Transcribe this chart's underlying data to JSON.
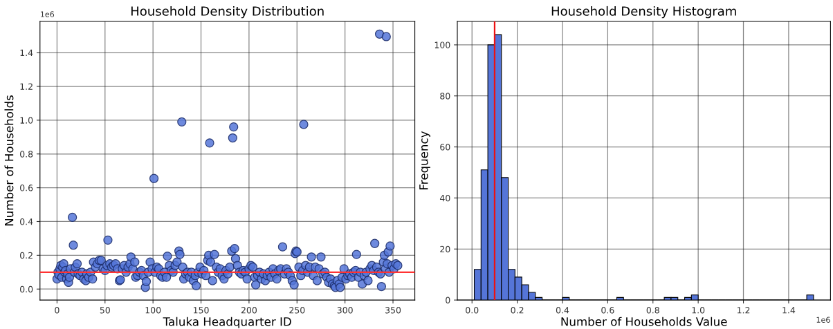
{
  "chart_data": [
    {
      "type": "scatter",
      "title": "Household Density Distribution",
      "xlabel": "Taluka Headquarter ID",
      "ylabel": "Number of Households",
      "annotations": [
        "1e6"
      ],
      "xlim": [
        -17.75,
        372.75
      ],
      "xticks": [
        0,
        50,
        100,
        150,
        200,
        250,
        300,
        350
      ],
      "ylim": [
        -0.065,
        1.585
      ],
      "yticks": [
        {
          "value": 0.0,
          "label": "0.0"
        },
        {
          "value": 0.2,
          "label": "0.2"
        },
        {
          "value": 0.4,
          "label": "0.4"
        },
        {
          "value": 0.6,
          "label": "0.6"
        },
        {
          "value": 0.8,
          "label": "0.8"
        },
        {
          "value": 1.0,
          "label": "1.0"
        },
        {
          "value": 1.2,
          "label": "1.2"
        },
        {
          "value": 1.4,
          "label": "1.4"
        }
      ],
      "grid": true,
      "marker": "circle",
      "ref_lines": [
        {
          "axis": "y",
          "value": 0.1,
          "color": "#ff3333"
        }
      ],
      "series": [
        {
          "color": "#5575d8",
          "x": [
            0,
            1,
            2,
            3,
            4,
            5,
            6,
            7,
            8,
            9,
            10,
            11,
            12,
            13,
            14,
            16,
            17,
            18,
            19,
            21,
            22,
            24,
            26,
            28,
            30,
            31,
            33,
            35,
            37,
            38,
            40,
            42,
            44,
            46,
            48,
            50,
            52,
            53,
            55,
            57,
            59,
            61,
            63,
            65,
            66,
            68,
            70,
            72,
            74,
            76,
            77,
            79,
            81,
            82,
            84,
            86,
            88,
            90,
            92,
            93,
            95,
            97,
            99,
            101,
            102,
            104,
            106,
            108,
            110,
            112,
            114,
            115,
            117,
            119,
            121,
            123,
            125,
            127,
            128,
            130,
            131,
            132,
            134,
            136,
            138,
            140,
            142,
            144,
            145,
            147,
            149,
            151,
            153,
            155,
            157,
            158,
            159,
            160,
            162,
            164,
            166,
            168,
            170,
            172,
            174,
            176,
            178,
            180,
            182,
            183,
            184,
            185,
            186,
            188,
            190,
            192,
            194,
            196,
            198,
            200,
            202,
            204,
            206,
            207,
            209,
            211,
            213,
            215,
            217,
            219,
            221,
            223,
            225,
            227,
            229,
            231,
            233,
            235,
            237,
            239,
            241,
            243,
            245,
            247,
            248,
            249,
            250,
            252,
            254,
            256,
            257,
            259,
            261,
            263,
            265,
            267,
            269,
            271,
            273,
            275,
            277,
            279,
            281,
            283,
            285,
            287,
            289,
            290,
            292,
            294,
            295,
            297,
            299,
            301,
            303,
            305,
            307,
            309,
            311,
            312,
            314,
            316,
            318,
            320,
            322,
            324,
            326,
            328,
            330,
            331,
            333,
            335,
            336,
            337,
            338,
            340,
            341,
            342,
            343,
            344,
            345,
            346,
            347,
            349,
            351,
            353,
            355
          ],
          "values": [
            0.06,
            0.1,
            0.085,
            0.12,
            0.14,
            0.07,
            0.13,
            0.15,
            0.1,
            0.11,
            0.06,
            0.09,
            0.04,
            0.07,
            0.12,
            0.425,
            0.26,
            0.1,
            0.13,
            0.15,
            0.09,
            0.08,
            0.1,
            0.06,
            0.05,
            0.09,
            0.07,
            0.1,
            0.06,
            0.16,
            0.13,
            0.15,
            0.17,
            0.17,
            0.12,
            0.11,
            0.14,
            0.29,
            0.15,
            0.13,
            0.14,
            0.15,
            0.12,
            0.05,
            0.055,
            0.12,
            0.14,
            0.1,
            0.13,
            0.15,
            0.19,
            0.12,
            0.16,
            0.07,
            0.08,
            0.1,
            0.11,
            0.08,
            0.01,
            0.045,
            0.1,
            0.16,
            0.12,
            0.655,
            0.1,
            0.13,
            0.12,
            0.08,
            0.07,
            0.1,
            0.07,
            0.195,
            0.14,
            0.11,
            0.1,
            0.14,
            0.16,
            0.225,
            0.205,
            0.99,
            0.13,
            0.06,
            0.09,
            0.1,
            0.07,
            0.1,
            0.05,
            0.08,
            0.02,
            0.1,
            0.13,
            0.09,
            0.11,
            0.08,
            0.17,
            0.2,
            0.865,
            0.16,
            0.05,
            0.205,
            0.13,
            0.1,
            0.12,
            0.08,
            0.06,
            0.11,
            0.09,
            0.13,
            0.225,
            0.895,
            0.96,
            0.24,
            0.18,
            0.14,
            0.1,
            0.09,
            0.11,
            0.1,
            0.06,
            0.12,
            0.14,
            0.13,
            0.07,
            0.025,
            0.08,
            0.1,
            0.06,
            0.09,
            0.05,
            0.08,
            0.1,
            0.07,
            0.12,
            0.09,
            0.06,
            0.11,
            0.12,
            0.25,
            0.09,
            0.12,
            0.1,
            0.08,
            0.05,
            0.025,
            0.21,
            0.225,
            0.22,
            0.13,
            0.08,
            0.11,
            0.975,
            0.14,
            0.1,
            0.13,
            0.19,
            0.08,
            0.13,
            0.05,
            0.12,
            0.19,
            0.09,
            0.1,
            0.07,
            0.04,
            0.06,
            0.03,
            0.02,
            0.01,
            0.05,
            0.03,
            0.01,
            0.07,
            0.12,
            0.06,
            0.08,
            0.09,
            0.07,
            0.1,
            0.11,
            0.205,
            0.07,
            0.1,
            0.03,
            0.08,
            0.1,
            0.05,
            0.12,
            0.14,
            0.11,
            0.27,
            0.13,
            0.1,
            1.51,
            0.09,
            0.015,
            0.16,
            0.2,
            0.12,
            1.495,
            0.15,
            0.22,
            0.1,
            0.255,
            0.14,
            0.12,
            0.15,
            0.14
          ]
        }
      ]
    },
    {
      "type": "histogram",
      "title": "Household Density Histogram",
      "xlabel": "Number of Households Value",
      "ylabel": "Frequency",
      "annotations": [
        "1e6"
      ],
      "color": "#5575d8",
      "xlim": [
        -0.065,
        1.585
      ],
      "xticks": [
        {
          "value": 0.0,
          "label": "0.0"
        },
        {
          "value": 0.2,
          "label": "0.2"
        },
        {
          "value": 0.4,
          "label": "0.4"
        },
        {
          "value": 0.6,
          "label": "0.6"
        },
        {
          "value": 0.8,
          "label": "0.8"
        },
        {
          "value": 1.0,
          "label": "1.0"
        },
        {
          "value": 1.2,
          "label": "1.2"
        },
        {
          "value": 1.4,
          "label": "1.4"
        }
      ],
      "ylim": [
        0,
        109.2
      ],
      "yticks": [
        0,
        20,
        40,
        60,
        80,
        100
      ],
      "grid": true,
      "ref_lines": [
        {
          "axis": "x",
          "value": 0.1,
          "color": "#ee1111"
        }
      ],
      "bins": [
        0.01,
        0.04,
        0.07,
        0.1,
        0.13,
        0.16,
        0.19,
        0.22,
        0.25,
        0.28,
        0.31,
        0.34,
        0.37,
        0.4,
        0.43,
        0.46,
        0.49,
        0.52,
        0.55,
        0.58,
        0.61,
        0.64,
        0.67,
        0.7,
        0.73,
        0.76,
        0.79,
        0.82,
        0.85,
        0.88,
        0.91,
        0.94,
        0.97,
        1.0,
        1.03,
        1.06,
        1.09,
        1.12,
        1.15,
        1.18,
        1.21,
        1.24,
        1.27,
        1.3,
        1.33,
        1.36,
        1.39,
        1.42,
        1.45,
        1.48,
        1.51
      ],
      "values": [
        12,
        51,
        100,
        104,
        48,
        12,
        9,
        6,
        3,
        1,
        0,
        0,
        0,
        1,
        0,
        0,
        0,
        0,
        0,
        0,
        0,
        1,
        0,
        0,
        0,
        0,
        0,
        0,
        1,
        1,
        0,
        1,
        2,
        0,
        0,
        0,
        0,
        0,
        0,
        0,
        0,
        0,
        0,
        0,
        0,
        0,
        0,
        0,
        0,
        2
      ]
    }
  ]
}
